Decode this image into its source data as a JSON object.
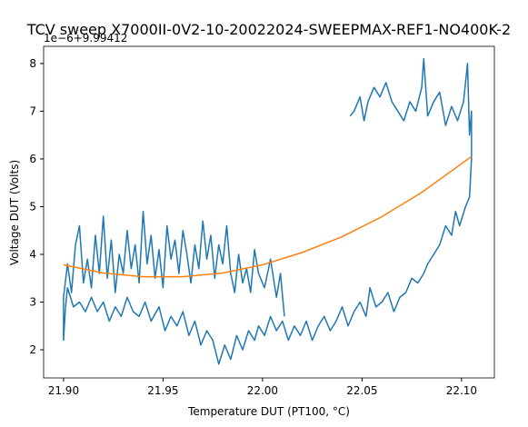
{
  "chart_data": {
    "type": "line",
    "title": "TCV sweep X7000II-0V2-10-20022024-SWEEPMAX-REF1-NO400K-2",
    "x_label": "Temperature DUT (PT100, °C)",
    "y_label": "Voltage DUT (Volts)",
    "y_offset_text": "1e−6+9.99412",
    "xlim": [
      21.89,
      22.1165
    ],
    "ylim": [
      1.41,
      8.36
    ],
    "xticks": [
      {
        "value": 21.9,
        "label": "21.90"
      },
      {
        "value": 21.95,
        "label": "21.95"
      },
      {
        "value": 22.0,
        "label": "22.00"
      },
      {
        "value": 22.05,
        "label": "22.05"
      },
      {
        "value": 22.1,
        "label": "22.10"
      }
    ],
    "yticks": [
      2,
      3,
      4,
      5,
      6,
      7,
      8
    ],
    "series": [
      {
        "color": "#1f77b4",
        "x": [
          22.044,
          22.046,
          22.049,
          22.051,
          22.053,
          22.056,
          22.059,
          22.062,
          22.065,
          22.068,
          22.071,
          22.074,
          22.077,
          22.08,
          22.081,
          22.083,
          22.086,
          22.089,
          22.092,
          22.095,
          22.098,
          22.101,
          22.103,
          22.104,
          22.105,
          22.105,
          22.104,
          22.102,
          22.099,
          22.097,
          22.095,
          22.092,
          22.089,
          22.086,
          22.083,
          22.081,
          22.078,
          22.075,
          22.072,
          22.069,
          22.066,
          22.063,
          22.06,
          22.057,
          22.054,
          22.052,
          22.049,
          22.046,
          22.043,
          22.04,
          22.037,
          22.034,
          22.031,
          22.028,
          22.025,
          22.022,
          22.019,
          22.016,
          22.013,
          22.01,
          22.007,
          22.004,
          22.001,
          21.998,
          21.996,
          21.993,
          21.99,
          21.987,
          21.984,
          21.981,
          21.978,
          21.975,
          21.972,
          21.969,
          21.966,
          21.963,
          21.96,
          21.957,
          21.954,
          21.951,
          21.948,
          21.944,
          21.941,
          21.938,
          21.935,
          21.932,
          21.929,
          21.926,
          21.923,
          21.92,
          21.917,
          21.914,
          21.911,
          21.908,
          21.905,
          21.902,
          21.901,
          21.9,
          21.9,
          21.902,
          21.904,
          21.906,
          21.908,
          21.91,
          21.912,
          21.914,
          21.916,
          21.918,
          21.92,
          21.922,
          21.924,
          21.926,
          21.928,
          21.93,
          21.932,
          21.934,
          21.936,
          21.938,
          21.94,
          21.942,
          21.944,
          21.946,
          21.948,
          21.95,
          21.952,
          21.954,
          21.956,
          21.958,
          21.96,
          21.962,
          21.964,
          21.966,
          21.968,
          21.97,
          21.972,
          21.974,
          21.976,
          21.978,
          21.98,
          21.982,
          21.984,
          21.986,
          21.988,
          21.99,
          21.992,
          21.994,
          21.996,
          21.998,
          22.001,
          22.004,
          22.007,
          22.009,
          22.011
        ],
        "values": [
          6.9,
          7.0,
          7.3,
          6.8,
          7.2,
          7.5,
          7.3,
          7.6,
          7.2,
          7.0,
          6.8,
          7.2,
          7.0,
          7.5,
          8.1,
          6.9,
          7.2,
          7.4,
          6.7,
          7.1,
          6.8,
          7.2,
          8.0,
          6.5,
          7.0,
          6.0,
          5.2,
          5.0,
          4.6,
          4.9,
          4.4,
          4.6,
          4.2,
          4.0,
          3.8,
          3.6,
          3.4,
          3.5,
          3.2,
          3.1,
          2.8,
          3.2,
          3.0,
          2.9,
          3.3,
          2.7,
          3.0,
          2.8,
          2.5,
          2.9,
          2.6,
          2.4,
          2.7,
          2.5,
          2.2,
          2.6,
          2.3,
          2.5,
          2.2,
          2.6,
          2.4,
          2.7,
          2.3,
          2.5,
          2.2,
          2.4,
          2.0,
          2.3,
          1.8,
          2.1,
          1.7,
          2.2,
          2.4,
          2.1,
          2.6,
          2.3,
          2.8,
          2.5,
          2.7,
          2.4,
          2.9,
          2.6,
          3.0,
          2.7,
          2.8,
          3.1,
          2.7,
          2.9,
          2.6,
          3.0,
          2.8,
          3.1,
          2.8,
          3.0,
          2.9,
          3.3,
          2.9,
          2.2,
          3.1,
          3.8,
          3.2,
          4.2,
          4.6,
          3.4,
          3.9,
          3.3,
          4.4,
          3.6,
          4.8,
          3.5,
          4.3,
          3.2,
          4.0,
          3.6,
          4.5,
          3.7,
          4.2,
          3.4,
          4.9,
          3.8,
          4.4,
          3.5,
          4.1,
          3.3,
          4.6,
          3.9,
          4.3,
          3.6,
          4.5,
          4.0,
          3.4,
          4.2,
          3.7,
          4.7,
          3.9,
          4.4,
          3.5,
          4.2,
          3.8,
          4.6,
          3.6,
          3.2,
          4.0,
          3.4,
          3.7,
          3.2,
          4.1,
          3.6,
          3.3,
          3.9,
          3.1,
          3.6,
          2.7
        ]
      },
      {
        "color": "#ff7f0e",
        "x": [
          21.9,
          21.92,
          21.94,
          21.96,
          21.98,
          22.0,
          22.02,
          22.04,
          22.06,
          22.08,
          22.105
        ],
        "values": [
          3.78,
          3.61,
          3.53,
          3.53,
          3.61,
          3.78,
          4.04,
          4.37,
          4.79,
          5.3,
          6.05
        ]
      }
    ]
  }
}
